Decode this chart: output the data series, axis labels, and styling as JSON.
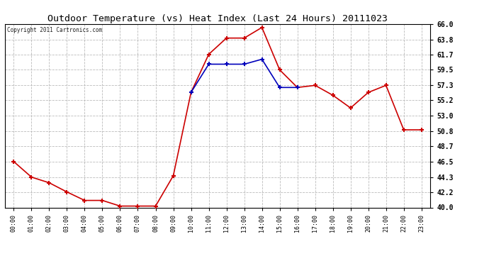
{
  "title": "Outdoor Temperature (vs) Heat Index (Last 24 Hours) 20111023",
  "copyright": "Copyright 2011 Cartronics.com",
  "x_labels": [
    "00:00",
    "01:00",
    "02:00",
    "03:00",
    "04:00",
    "05:00",
    "06:00",
    "07:00",
    "08:00",
    "09:00",
    "10:00",
    "11:00",
    "12:00",
    "13:00",
    "14:00",
    "15:00",
    "16:00",
    "17:00",
    "18:00",
    "19:00",
    "20:00",
    "21:00",
    "22:00",
    "23:00"
  ],
  "temp_red": [
    46.5,
    44.3,
    43.5,
    42.2,
    41.0,
    41.0,
    40.2,
    40.2,
    40.2,
    44.5,
    56.3,
    61.7,
    64.0,
    64.0,
    65.5,
    59.5,
    57.0,
    57.3,
    55.9,
    54.1,
    56.3,
    57.3,
    51.0,
    51.0
  ],
  "heat_blue": [
    null,
    null,
    null,
    null,
    null,
    null,
    null,
    null,
    null,
    null,
    56.3,
    60.3,
    60.3,
    60.3,
    61.0,
    57.0,
    57.0,
    null,
    null,
    null,
    null,
    null,
    null,
    null
  ],
  "ylim": [
    40.0,
    66.0
  ],
  "yticks": [
    40.0,
    42.2,
    44.3,
    46.5,
    48.7,
    50.8,
    53.0,
    55.2,
    57.3,
    59.5,
    61.7,
    63.8,
    66.0
  ],
  "bg_color": "#ffffff",
  "grid_color": "#bbbbbb",
  "red_color": "#cc0000",
  "blue_color": "#0000bb",
  "title_color": "#000000",
  "marker_size": 5,
  "line_width": 1.2
}
